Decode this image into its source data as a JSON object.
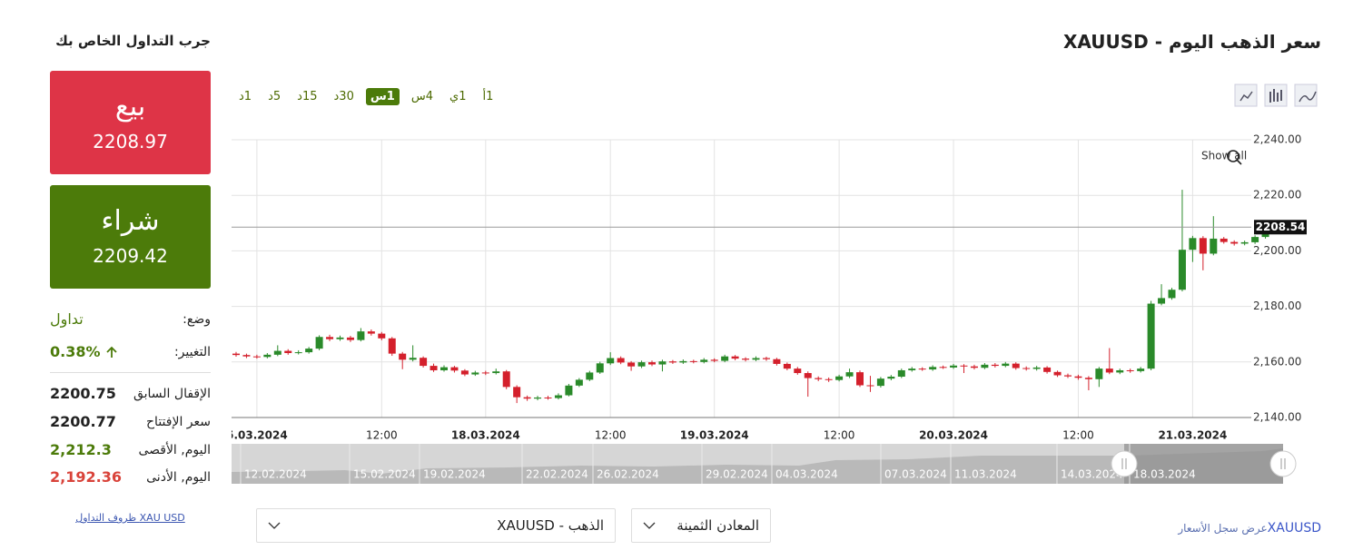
{
  "header": {
    "title": "سعر الذهب اليوم - XAUUSD"
  },
  "sidebar": {
    "heading": "جرب التداول الخاص بك",
    "sell": {
      "label": "بيع",
      "price": "2208.97"
    },
    "buy": {
      "label": "شراء",
      "price": "2209.42"
    },
    "rows": [
      {
        "label": "وضع:",
        "value": "تداول"
      },
      {
        "label": "التغيير:",
        "value": "0.38%"
      },
      {
        "label": "الإقفال السابق",
        "value": "2200.75"
      },
      {
        "label": "سعر الإفتتاح",
        "value": "2200.77"
      },
      {
        "label": "اليوم, الأقصى",
        "value": "2,212.3"
      },
      {
        "label": "اليوم, الأدنى",
        "value": "2,192.36"
      }
    ],
    "link": "XAU USD ظروف التداول"
  },
  "chart_ui": {
    "timeframes": [
      "1د",
      "5د",
      "15د",
      "30د",
      "1س",
      "4س",
      "1ي",
      "1أ"
    ],
    "active": 4,
    "show_all": "Show all",
    "navigator": [
      "12.02.2024",
      "15.02.2024",
      "19.02.2024",
      "22.02.2024",
      "26.02.2024",
      "29.02.2024",
      "04.03.2024",
      "07.03.2024",
      "11.03.2024",
      "14.03.2024",
      "18.03.2024"
    ]
  },
  "chart_data": {
    "type": "candlestick",
    "up_color": "#2a8a2a",
    "down_color": "#d4202c",
    "grid": true,
    "ylim": [
      2140,
      2240
    ],
    "yticks": [
      {
        "value": 2140,
        "label": "2,140.00"
      },
      {
        "value": 2160,
        "label": "2,160.00"
      },
      {
        "value": 2180,
        "label": "2,180.00"
      },
      {
        "value": 2200,
        "label": "2,200.00"
      },
      {
        "value": 2220,
        "label": "2,220.00"
      },
      {
        "value": 2240,
        "label": "2,240.00"
      }
    ],
    "last_price": 2208.54,
    "categories": [
      null,
      null,
      "5.03.2024",
      null,
      null,
      null,
      null,
      null,
      null,
      null,
      null,
      null,
      null,
      null,
      "12:00",
      null,
      null,
      null,
      null,
      null,
      null,
      null,
      null,
      null,
      "18.03.2024",
      null,
      null,
      null,
      null,
      null,
      null,
      null,
      null,
      null,
      null,
      null,
      "12:00",
      null,
      null,
      null,
      null,
      null,
      null,
      null,
      null,
      null,
      "19.03.2024",
      null,
      null,
      null,
      null,
      null,
      null,
      null,
      null,
      null,
      null,
      null,
      "12:00",
      null,
      null,
      null,
      null,
      null,
      null,
      null,
      null,
      null,
      null,
      "20.03.2024",
      null,
      null,
      null,
      null,
      null,
      null,
      null,
      null,
      null,
      null,
      null,
      "12:00",
      null,
      null,
      null,
      null,
      null,
      null,
      null,
      null,
      null,
      null,
      "21.03.2024",
      null,
      null,
      null,
      null,
      null,
      null,
      null
    ],
    "open": [
      2163.0,
      2162.5,
      2162.0,
      2161.8,
      2162.6,
      2164.0,
      2163.2,
      2163.5,
      2164.8,
      2169.0,
      2168.2,
      2168.8,
      2167.9,
      2171.0,
      2170.2,
      2168.5,
      2163.0,
      2160.8,
      2161.5,
      2158.6,
      2157.0,
      2158.1,
      2156.9,
      2155.5,
      2156.2,
      2156.0,
      2156.6,
      2151.0,
      2147.3,
      2146.8,
      2147.2,
      2147.0,
      2148.0,
      2151.5,
      2153.6,
      2156.2,
      2159.5,
      2161.4,
      2159.8,
      2158.4,
      2159.9,
      2159.1,
      2160.2,
      2159.8,
      2160.3,
      2160.0,
      2160.8,
      2160.4,
      2162.0,
      2161.2,
      2160.8,
      2161.4,
      2161.0,
      2159.3,
      2157.6,
      2156.0,
      2154.2,
      2153.8,
      2153.5,
      2154.8,
      2156.3,
      2151.6,
      2151.4,
      2154.0,
      2154.7,
      2157.0,
      2157.6,
      2157.3,
      2158.2,
      2158.0,
      2158.7,
      2158.4,
      2157.9,
      2159.0,
      2158.6,
      2159.4,
      2157.8,
      2157.5,
      2158.0,
      2156.4,
      2155.2,
      2154.8,
      2154.3,
      2153.8,
      2157.6,
      2156.2,
      2157.0,
      2156.7,
      2157.6,
      2181.0,
      2183.0,
      2186.0,
      2200.4,
      2204.6,
      2199.0,
      2204.4,
      2203.2,
      2202.6,
      2203.1,
      2205.0
    ],
    "high": [
      2163.6,
      2163.0,
      2162.6,
      2163.2,
      2166.0,
      2164.6,
      2164.2,
      2165.4,
      2169.6,
      2169.8,
      2169.5,
      2169.4,
      2172.2,
      2171.7,
      2170.8,
      2169.0,
      2163.6,
      2166.0,
      2162.0,
      2159.4,
      2158.8,
      2158.6,
      2157.4,
      2156.8,
      2156.8,
      2157.6,
      2157.1,
      2151.6,
      2147.9,
      2147.8,
      2147.8,
      2148.7,
      2152.1,
      2154.2,
      2156.8,
      2160.1,
      2163.5,
      2162.0,
      2160.3,
      2160.5,
      2160.5,
      2160.8,
      2160.7,
      2160.9,
      2160.8,
      2161.4,
      2161.3,
      2162.6,
      2162.5,
      2161.7,
      2162.0,
      2161.9,
      2161.5,
      2159.8,
      2158.2,
      2156.6,
      2154.8,
      2154.4,
      2155.4,
      2157.6,
      2156.9,
      2155.0,
      2154.6,
      2155.3,
      2157.6,
      2158.2,
      2158.1,
      2158.8,
      2158.7,
      2159.3,
      2159.2,
      2159.0,
      2159.6,
      2159.6,
      2160.0,
      2159.9,
      2158.4,
      2158.6,
      2158.5,
      2156.9,
      2155.8,
      2155.4,
      2154.9,
      2158.2,
      2165.0,
      2157.6,
      2157.6,
      2158.2,
      2182.0,
      2188.0,
      2186.7,
      2222.0,
      2205.4,
      2205.3,
      2212.5,
      2205.0,
      2203.8,
      2203.7,
      2205.6,
      2207.0
    ],
    "low": [
      2161.9,
      2161.4,
      2161.2,
      2161.3,
      2162.1,
      2162.6,
      2162.7,
      2163.0,
      2164.2,
      2167.5,
      2167.6,
      2167.2,
      2167.4,
      2169.5,
      2167.8,
      2162.2,
      2157.4,
      2160.2,
      2158.0,
      2156.4,
      2156.5,
      2156.2,
      2154.9,
      2155.0,
      2155.3,
      2155.5,
      2150.2,
      2145.2,
      2146.0,
      2146.2,
      2146.4,
      2146.5,
      2147.6,
      2151.0,
      2153.1,
      2155.7,
      2158.9,
      2159.2,
      2156.8,
      2157.8,
      2158.5,
      2156.6,
      2159.3,
      2159.3,
      2159.5,
      2159.5,
      2159.9,
      2159.9,
      2160.6,
      2160.2,
      2160.3,
      2160.4,
      2158.7,
      2157.0,
      2155.4,
      2147.5,
      2153.1,
      2152.8,
      2153.0,
      2154.2,
      2151.0,
      2149.2,
      2150.8,
      2153.4,
      2154.2,
      2156.5,
      2156.8,
      2156.8,
      2157.5,
      2157.5,
      2156.0,
      2157.3,
      2157.4,
      2158.0,
      2158.1,
      2157.2,
      2156.9,
      2156.9,
      2155.8,
      2154.6,
      2154.2,
      2153.6,
      2149.8,
      2151.0,
      2155.6,
      2155.6,
      2156.1,
      2156.2,
      2157.0,
      2180.4,
      2182.4,
      2185.4,
      2196.0,
      2193.0,
      2198.4,
      2202.6,
      2201.9,
      2202.0,
      2202.5,
      2204.4
    ],
    "close": [
      2162.5,
      2162.0,
      2161.8,
      2162.6,
      2164.0,
      2163.2,
      2163.5,
      2164.8,
      2169.0,
      2168.2,
      2168.8,
      2167.9,
      2171.0,
      2170.2,
      2168.5,
      2163.0,
      2160.8,
      2161.5,
      2158.6,
      2157.0,
      2158.1,
      2156.9,
      2155.5,
      2156.2,
      2156.0,
      2156.6,
      2151.0,
      2147.3,
      2146.8,
      2147.2,
      2147.0,
      2148.0,
      2151.5,
      2153.6,
      2156.2,
      2159.5,
      2161.4,
      2159.8,
      2158.4,
      2159.9,
      2159.1,
      2160.2,
      2159.8,
      2160.3,
      2160.0,
      2160.8,
      2160.4,
      2162.0,
      2161.2,
      2160.8,
      2161.4,
      2161.0,
      2159.3,
      2157.6,
      2156.0,
      2154.2,
      2153.8,
      2153.5,
      2154.8,
      2156.3,
      2151.6,
      2151.4,
      2154.0,
      2154.7,
      2157.0,
      2157.6,
      2157.3,
      2158.2,
      2158.0,
      2158.7,
      2158.4,
      2157.9,
      2159.0,
      2158.6,
      2159.4,
      2157.8,
      2157.5,
      2158.0,
      2156.4,
      2155.2,
      2154.8,
      2154.3,
      2153.8,
      2157.6,
      2156.2,
      2157.0,
      2156.7,
      2157.6,
      2181.0,
      2183.0,
      2186.0,
      2200.4,
      2204.6,
      2199.0,
      2204.4,
      2203.2,
      2202.6,
      2203.1,
      2205.0,
      2206.4
    ]
  },
  "footer": {
    "select_symbol": "الذهب - XAUUSD",
    "select_group": "المعادن الثمينة",
    "history_symbol": "XAUUSD",
    "history_text": "عرض سجل الأسعار"
  }
}
